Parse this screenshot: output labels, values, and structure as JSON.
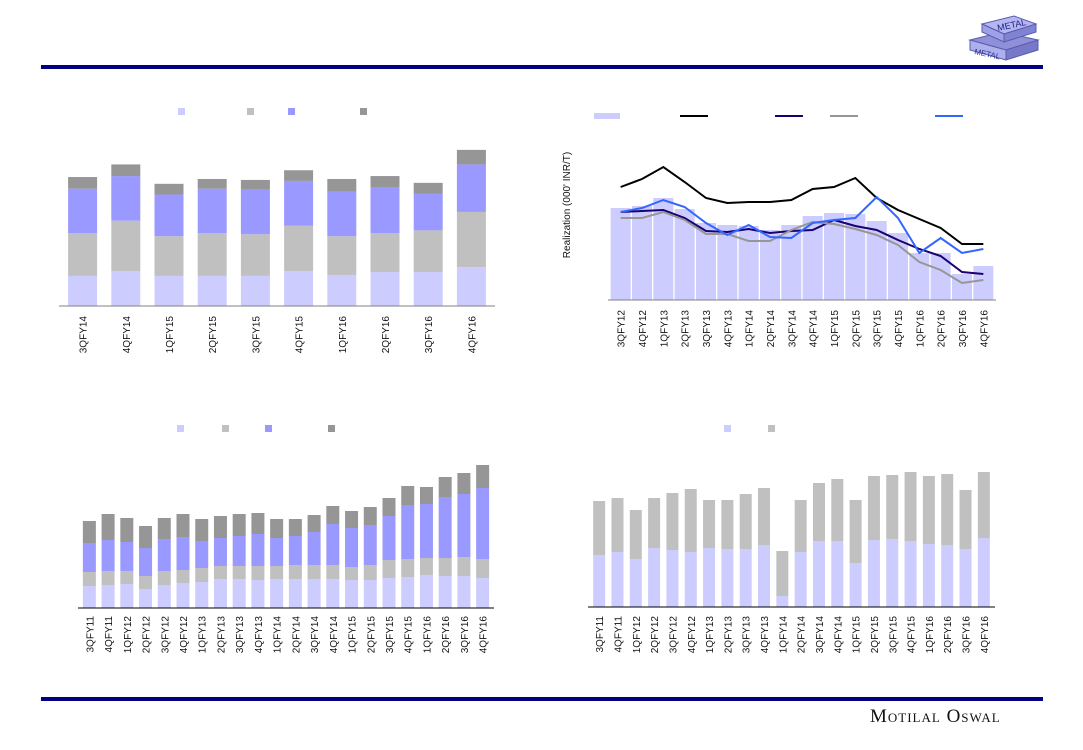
{
  "brand": {
    "name": "Motilal Oswal",
    "logo_text_top": "METAL",
    "logo_text_bottom": "METAL"
  },
  "colors": {
    "rule": "#000080",
    "light": "#ccccff",
    "gray": "#c0c0c0",
    "blue": "#9999ff",
    "dark": "#969696",
    "line_black": "#000000",
    "line_navy": "#1a0070",
    "line_gray": "#969696",
    "line_blue": "#3366ff"
  },
  "chart_data": [
    {
      "type": "bar",
      "stacked": true,
      "title": "",
      "xlabel": "",
      "ylabel": "",
      "categories": [
        "3QFY14",
        "4QFY14",
        "1QFY15",
        "2QFY15",
        "3QFY15",
        "4QFY15",
        "1QFY16",
        "2QFY16",
        "3QFY16",
        "4QFY16"
      ],
      "series": [
        {
          "name": "",
          "color": "#ccccff",
          "values": [
            31,
            36,
            31,
            31,
            31,
            36,
            32,
            35,
            35,
            40
          ]
        },
        {
          "name": "",
          "color": "#c0c0c0",
          "values": [
            44,
            52,
            41,
            44,
            43,
            47,
            40,
            40,
            43,
            57
          ]
        },
        {
          "name": "",
          "color": "#9999ff",
          "values": [
            46,
            46,
            43,
            46,
            46,
            46,
            46,
            47,
            38,
            49
          ]
        },
        {
          "name": "",
          "color": "#969696",
          "values": [
            12,
            12,
            11,
            10,
            10,
            11,
            13,
            12,
            11,
            15
          ]
        }
      ],
      "ylim": [
        0,
        165
      ],
      "grid": false,
      "legend": "top"
    },
    {
      "type": "bar+line",
      "title": "",
      "xlabel": "",
      "ylabel": "Realization (000' INR/T)",
      "categories": [
        "3QFY12",
        "4QFY12",
        "1QFY13",
        "2QFY13",
        "3QFY13",
        "4QFY13",
        "1QFY14",
        "2QFY14",
        "3QFY14",
        "4QFY14",
        "1QFY15",
        "2QFY15",
        "3QFY15",
        "4QFY15",
        "1QFY16",
        "2QFY16",
        "3QFY16",
        "4QFY16"
      ],
      "bar_series": {
        "name": "",
        "color": "#ccccff",
        "values": [
          92,
          94,
          102,
          91,
          77,
          75,
          74,
          70,
          75,
          84,
          87,
          86,
          79,
          67,
          47,
          47,
          26,
          34
        ]
      },
      "series": [
        {
          "name": "",
          "color": "#000000",
          "values": [
            113,
            121,
            133,
            118,
            102,
            97,
            98,
            98,
            100,
            111,
            113,
            122,
            102,
            90,
            81,
            72,
            56,
            56
          ]
        },
        {
          "name": "",
          "color": "#1a0070",
          "values": [
            88,
            89,
            90,
            82,
            69,
            68,
            71,
            67,
            69,
            70,
            80,
            74,
            70,
            60,
            51,
            44,
            28,
            26
          ]
        },
        {
          "name": "",
          "color": "#969696",
          "values": [
            82,
            82,
            88,
            80,
            66,
            66,
            59,
            59,
            70,
            78,
            76,
            71,
            65,
            55,
            38,
            30,
            17,
            20
          ]
        },
        {
          "name": "",
          "color": "#3366ff",
          "values": [
            88,
            92,
            100,
            93,
            77,
            65,
            75,
            63,
            62,
            77,
            80,
            82,
            103,
            82,
            47,
            62,
            47,
            51
          ]
        }
      ],
      "ylim": [
        0,
        160
      ],
      "grid": false,
      "legend": "top"
    },
    {
      "type": "bar",
      "stacked": true,
      "title": "",
      "xlabel": "",
      "ylabel": "",
      "categories": [
        "3QFY11",
        "4QFY11",
        "1QFY12",
        "2QFY12",
        "3QFY12",
        "4QFY12",
        "1QFY13",
        "2QFY13",
        "3QFY13",
        "4QFY13",
        "1QFY14",
        "2QFY14",
        "3QFY14",
        "4QFY14",
        "1QFY15",
        "2QFY15",
        "3QFY15",
        "4QFY15",
        "1QFY16",
        "2QFY16",
        "3QFY16",
        "4QFY16"
      ],
      "series": [
        {
          "name": "",
          "color": "#ccccff",
          "values": [
            22,
            23,
            24,
            19,
            23,
            25,
            26,
            29,
            29,
            28,
            29,
            29,
            29,
            29,
            28,
            28,
            30,
            31,
            33,
            32,
            32,
            30
          ]
        },
        {
          "name": "",
          "color": "#c0c0c0",
          "values": [
            14,
            14,
            13,
            13,
            14,
            13,
            14,
            13,
            13,
            14,
            13,
            14,
            14,
            14,
            13,
            15,
            18,
            18,
            17,
            18,
            19,
            19
          ]
        },
        {
          "name": "",
          "color": "#9999ff",
          "values": [
            29,
            31,
            29,
            28,
            32,
            33,
            27,
            28,
            30,
            32,
            28,
            29,
            33,
            41,
            39,
            40,
            44,
            54,
            54,
            61,
            63,
            71
          ]
        },
        {
          "name": "",
          "color": "#969696",
          "values": [
            22,
            26,
            24,
            22,
            21,
            23,
            22,
            22,
            22,
            21,
            19,
            17,
            17,
            18,
            17,
            18,
            18,
            19,
            17,
            20,
            21,
            23
          ]
        }
      ],
      "ylim": [
        0,
        160
      ],
      "grid": false,
      "legend": "top"
    },
    {
      "type": "bar",
      "stacked": true,
      "title": "",
      "xlabel": "",
      "ylabel": "",
      "categories": [
        "3QFY11",
        "4QFY11",
        "1QFY12",
        "2QFY12",
        "3QFY12",
        "4QFY12",
        "1QFY13",
        "2QFY13",
        "3QFY13",
        "4QFY13",
        "1QFY14",
        "2QFY14",
        "3QFY14",
        "4QFY14",
        "1QFY15",
        "2QFY15",
        "3QFY15",
        "4QFY15",
        "1QFY16",
        "2QFY16",
        "3QFY16",
        "4QFY16"
      ],
      "series": [
        {
          "name": "",
          "color": "#ccccff",
          "values": [
            52,
            55,
            48,
            59,
            57,
            55,
            59,
            58,
            58,
            62,
            11,
            55,
            66,
            66,
            44,
            67,
            68,
            66,
            63,
            62,
            58,
            69
          ]
        },
        {
          "name": "",
          "color": "#c0c0c0",
          "values": [
            54,
            54,
            49,
            50,
            57,
            63,
            48,
            49,
            55,
            57,
            45,
            52,
            58,
            62,
            63,
            64,
            64,
            69,
            68,
            71,
            59,
            66
          ]
        }
      ],
      "ylim": [
        0,
        160
      ],
      "grid": false,
      "legend": "top"
    }
  ]
}
